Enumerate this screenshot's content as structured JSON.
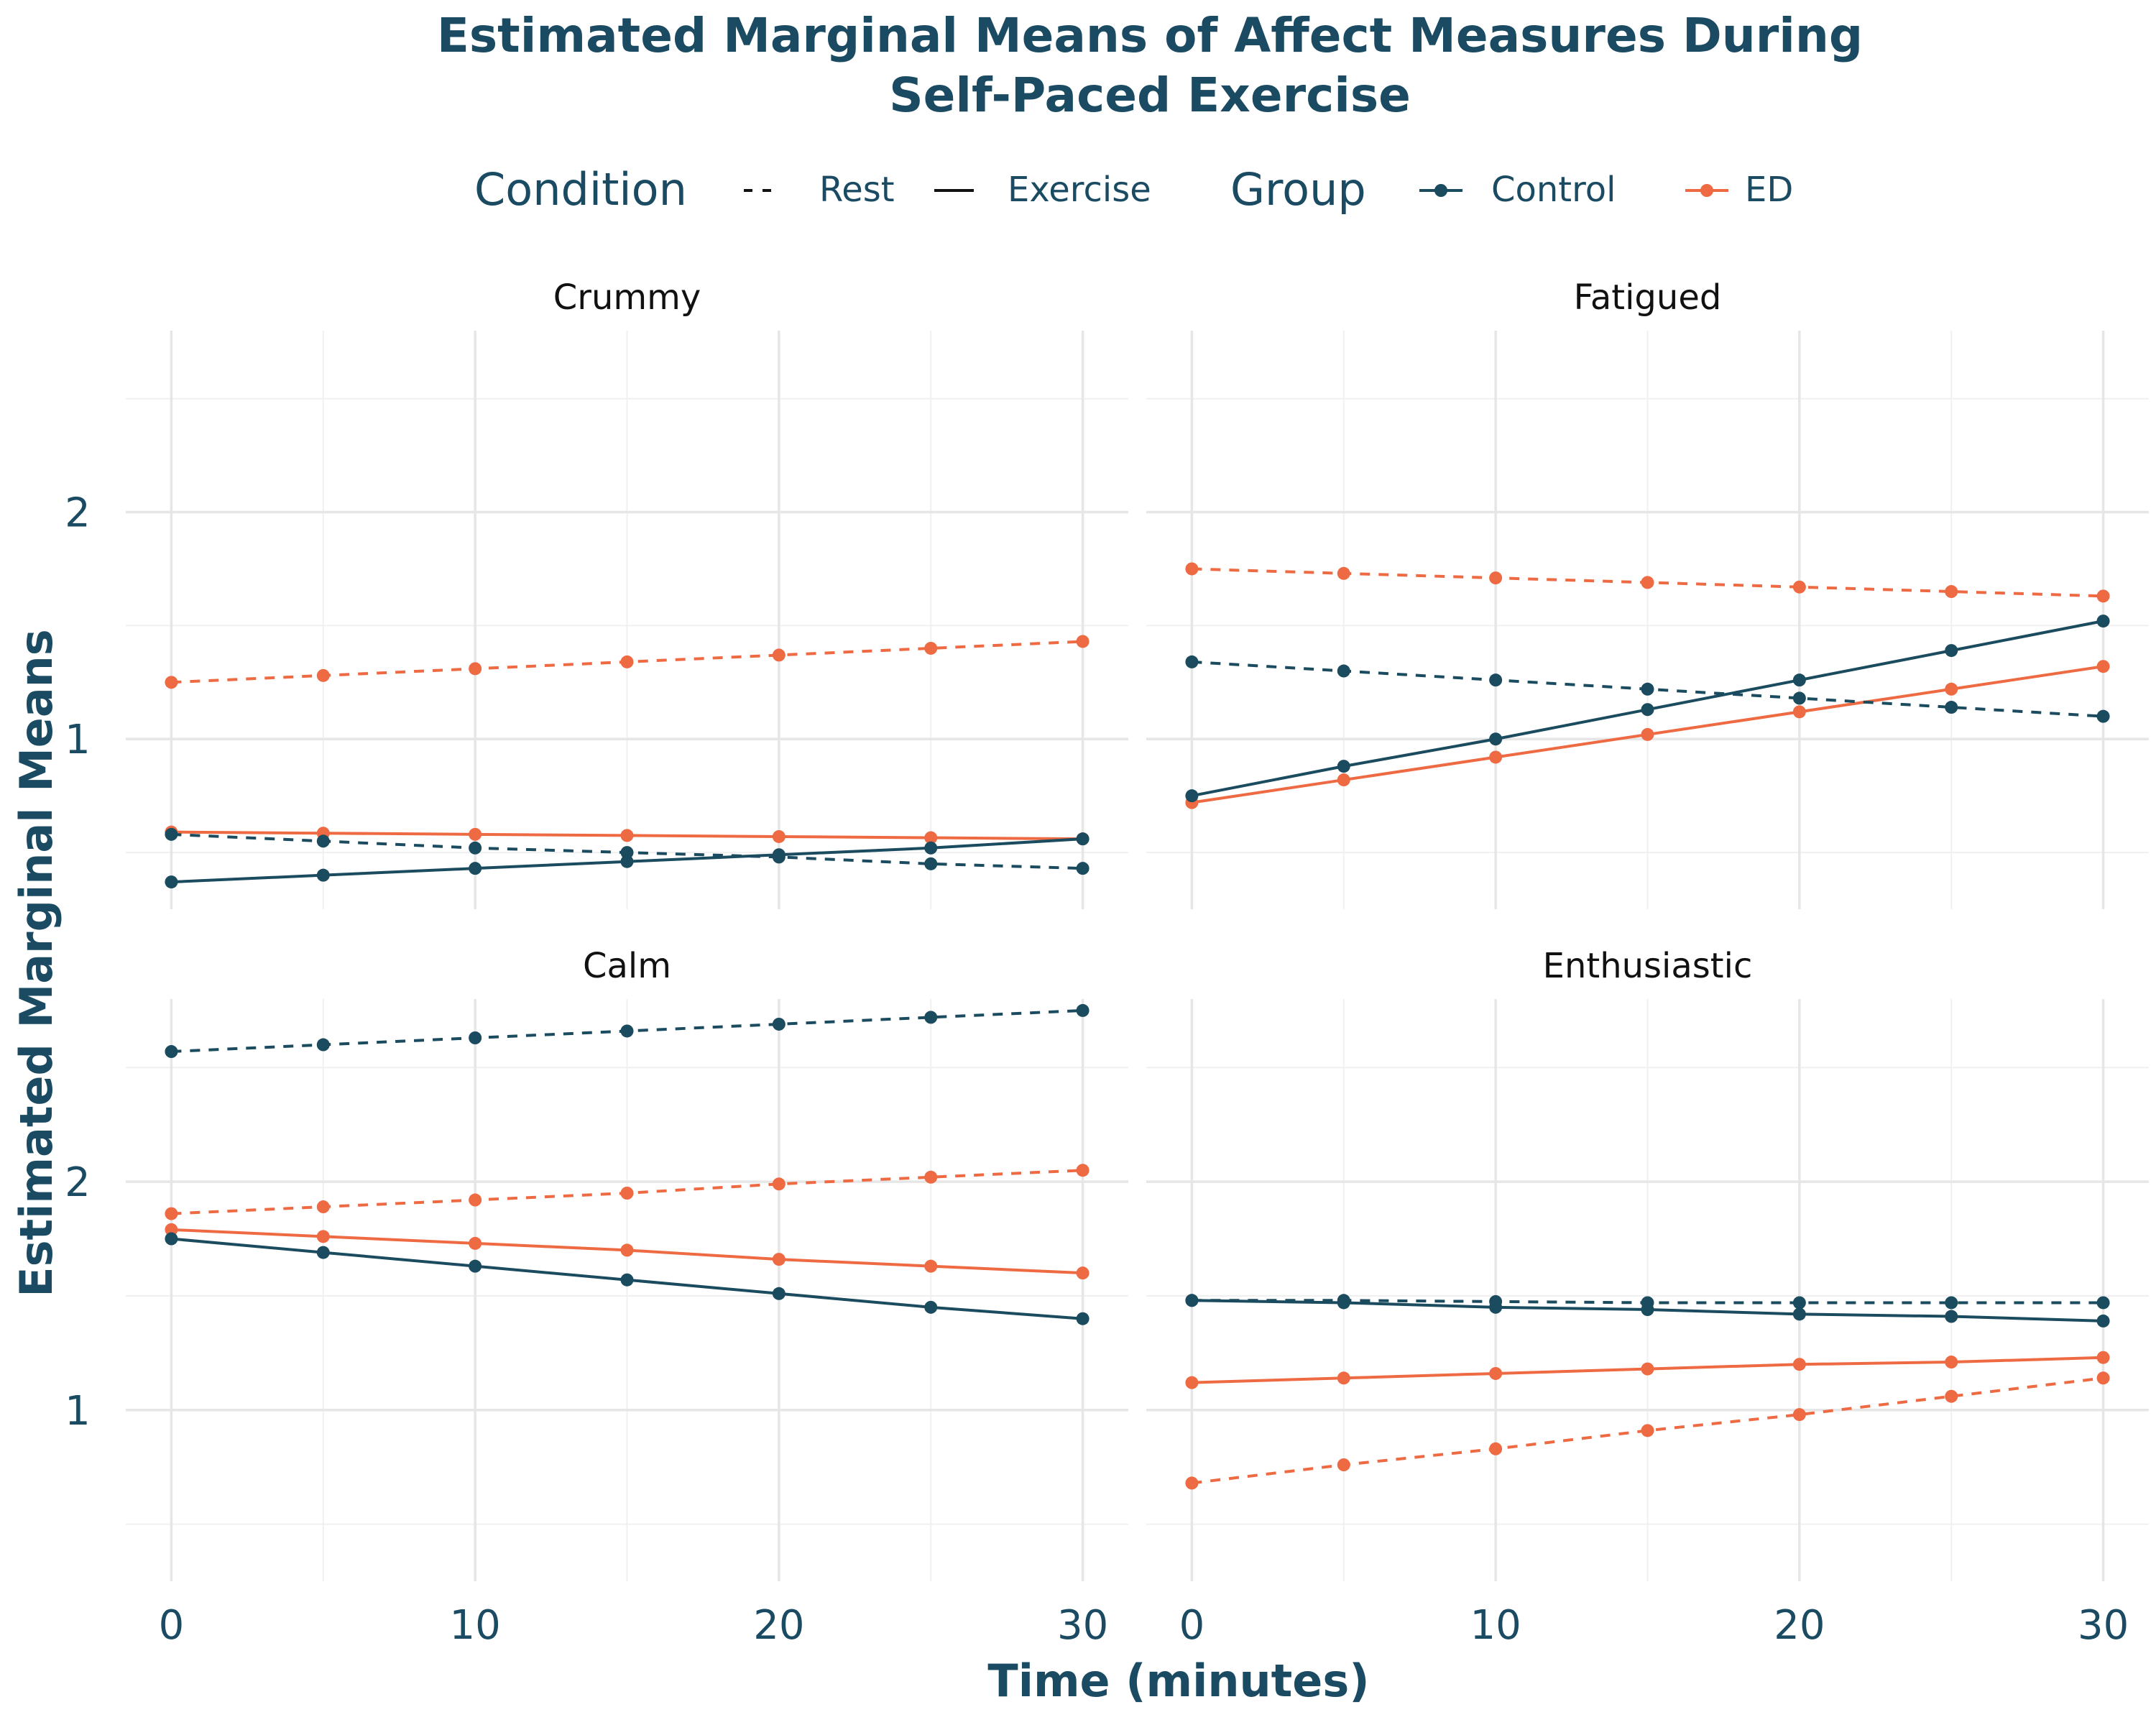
{
  "chart_data": {
    "type": "line",
    "title": "Estimated Marginal Means of Affect Measures During Self-Paced Exercise",
    "title_lines": [
      "Estimated Marginal Means of Affect Measures During",
      "Self-Paced Exercise"
    ],
    "xlabel": "Time (minutes)",
    "ylabel": "Estimated Marginal Means",
    "x": [
      0,
      5,
      10,
      15,
      20,
      25,
      30
    ],
    "x_ticks": [
      "0",
      "10",
      "20",
      "30"
    ],
    "y_ticks": [
      "1",
      "2"
    ],
    "xlim": [
      -1.5,
      31.5
    ],
    "ylim": [
      0.25,
      2.8
    ],
    "grid": true,
    "legend": {
      "placement": "top",
      "condition_title": "Condition",
      "condition_items": [
        {
          "label": "Rest",
          "linetype": "dashed"
        },
        {
          "label": "Exercise",
          "linetype": "solid"
        }
      ],
      "group_title": "Group",
      "group_items": [
        {
          "label": "Control",
          "color": "#1b4b5e"
        },
        {
          "label": "ED",
          "color": "#ee6a43"
        }
      ]
    },
    "colors": {
      "Control": "#1b4b5e",
      "ED": "#ee6a43"
    },
    "panels": [
      {
        "name": "Crummy",
        "series": [
          {
            "group": "ED",
            "condition": "Rest",
            "values": [
              1.25,
              1.28,
              1.31,
              1.34,
              1.37,
              1.4,
              1.43
            ]
          },
          {
            "group": "ED",
            "condition": "Exercise",
            "values": [
              0.59,
              0.585,
              0.58,
              0.575,
              0.57,
              0.565,
              0.56
            ]
          },
          {
            "group": "Control",
            "condition": "Rest",
            "values": [
              0.58,
              0.55,
              0.52,
              0.5,
              0.48,
              0.45,
              0.43
            ]
          },
          {
            "group": "Control",
            "condition": "Exercise",
            "values": [
              0.37,
              0.4,
              0.43,
              0.46,
              0.49,
              0.52,
              0.56
            ]
          }
        ]
      },
      {
        "name": "Fatigued",
        "series": [
          {
            "group": "ED",
            "condition": "Rest",
            "values": [
              1.75,
              1.73,
              1.71,
              1.69,
              1.67,
              1.65,
              1.63
            ]
          },
          {
            "group": "ED",
            "condition": "Exercise",
            "values": [
              0.72,
              0.82,
              0.92,
              1.02,
              1.12,
              1.22,
              1.32
            ]
          },
          {
            "group": "Control",
            "condition": "Rest",
            "values": [
              1.34,
              1.3,
              1.26,
              1.22,
              1.18,
              1.14,
              1.1
            ]
          },
          {
            "group": "Control",
            "condition": "Exercise",
            "values": [
              0.75,
              0.88,
              1.0,
              1.13,
              1.26,
              1.39,
              1.52
            ]
          }
        ]
      },
      {
        "name": "Calm",
        "series": [
          {
            "group": "Control",
            "condition": "Rest",
            "values": [
              2.57,
              2.6,
              2.63,
              2.66,
              2.69,
              2.72,
              2.75
            ]
          },
          {
            "group": "ED",
            "condition": "Rest",
            "values": [
              1.86,
              1.89,
              1.92,
              1.95,
              1.99,
              2.02,
              2.05
            ]
          },
          {
            "group": "ED",
            "condition": "Exercise",
            "values": [
              1.79,
              1.76,
              1.73,
              1.7,
              1.66,
              1.63,
              1.6
            ]
          },
          {
            "group": "Control",
            "condition": "Exercise",
            "values": [
              1.75,
              1.69,
              1.63,
              1.57,
              1.51,
              1.45,
              1.4
            ]
          }
        ]
      },
      {
        "name": "Enthusiastic",
        "series": [
          {
            "group": "Control",
            "condition": "Rest",
            "values": [
              1.48,
              1.48,
              1.475,
              1.47,
              1.47,
              1.47,
              1.47
            ]
          },
          {
            "group": "Control",
            "condition": "Exercise",
            "values": [
              1.48,
              1.47,
              1.45,
              1.44,
              1.42,
              1.41,
              1.39
            ]
          },
          {
            "group": "ED",
            "condition": "Exercise",
            "values": [
              1.12,
              1.14,
              1.16,
              1.18,
              1.2,
              1.21,
              1.23
            ]
          },
          {
            "group": "ED",
            "condition": "Rest",
            "values": [
              0.68,
              0.76,
              0.83,
              0.91,
              0.98,
              1.06,
              1.14
            ]
          }
        ]
      }
    ]
  }
}
